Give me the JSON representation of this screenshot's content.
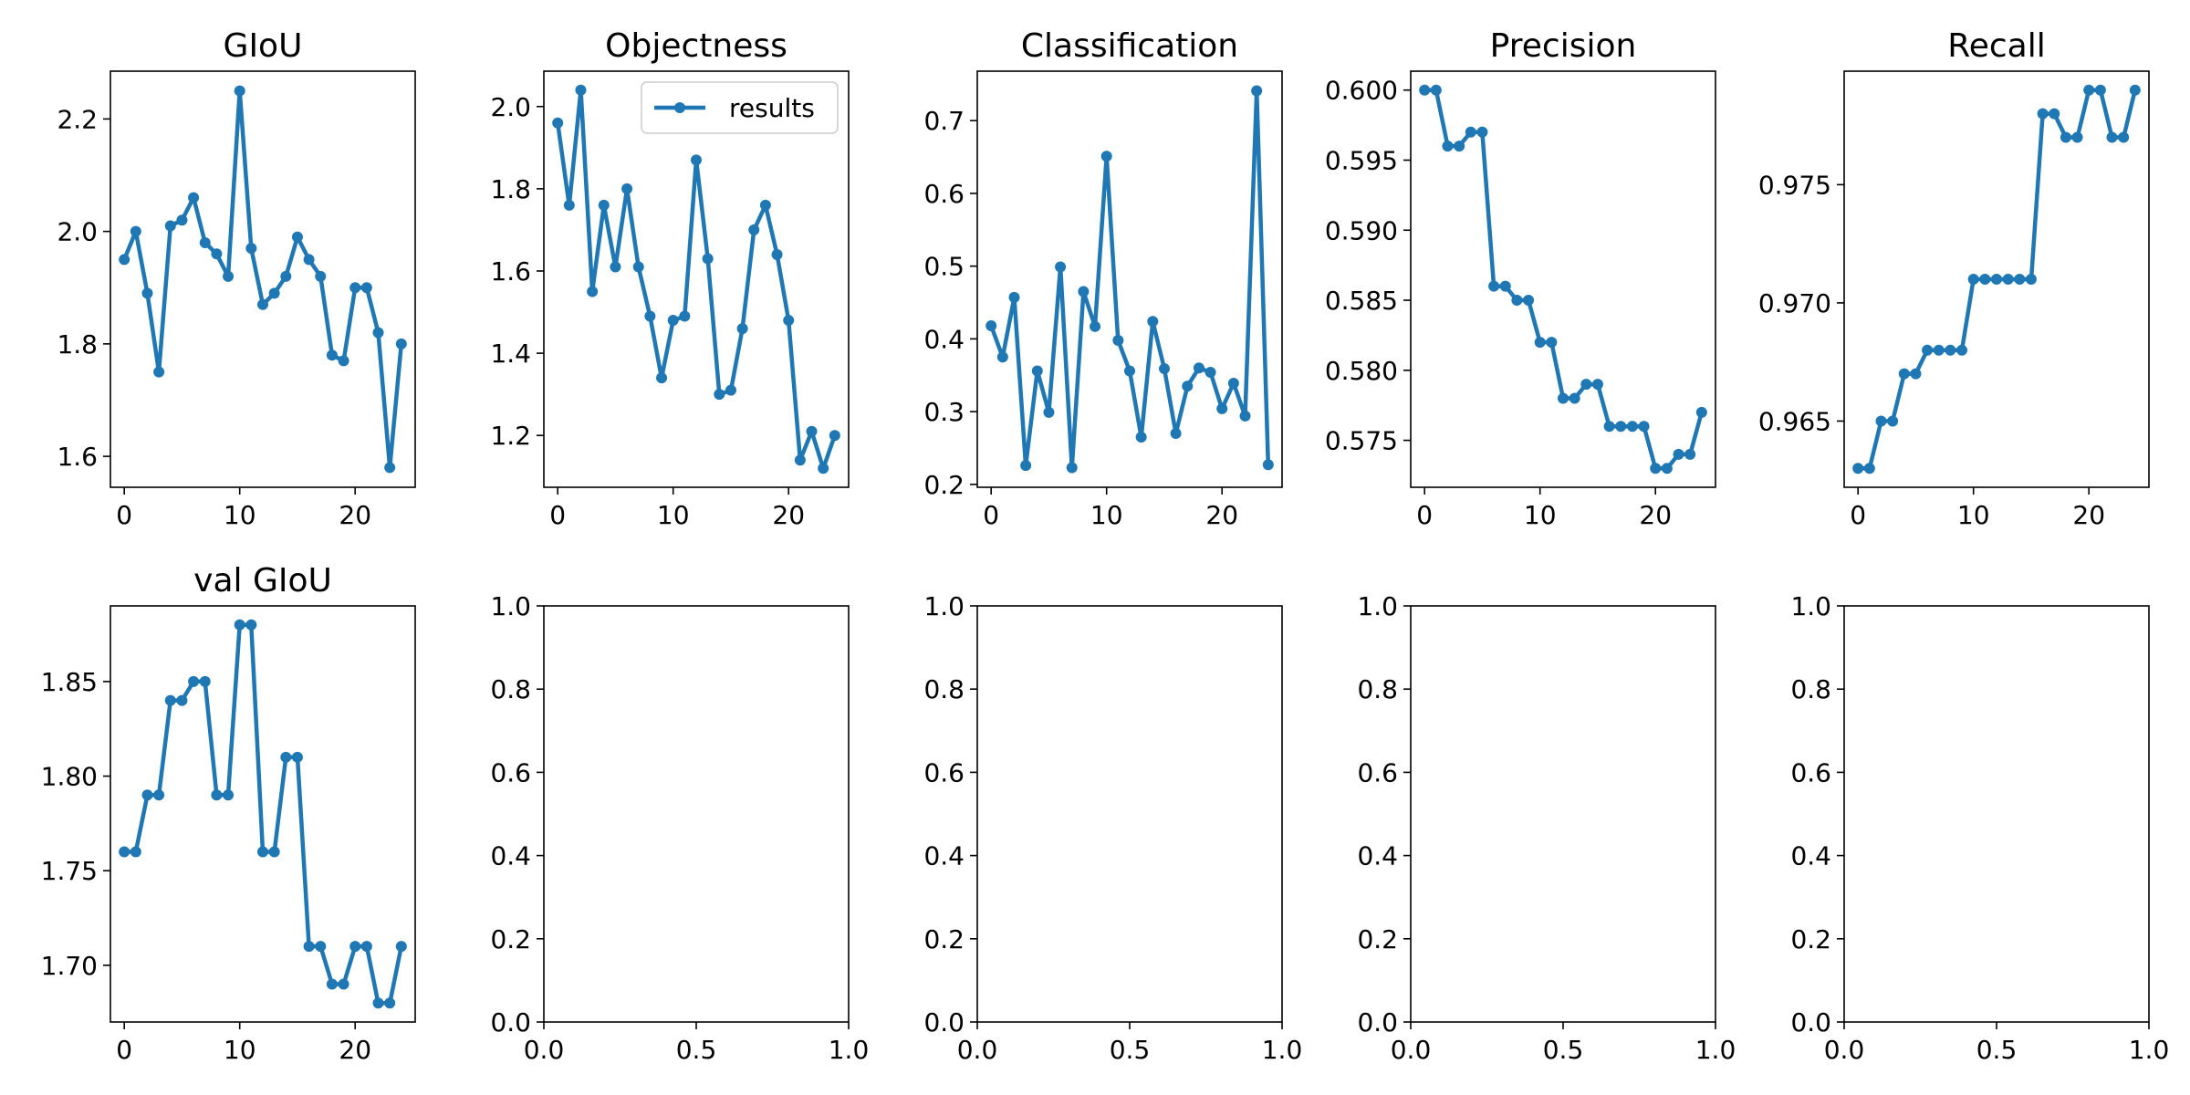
{
  "chart_data": [
    {
      "type": "line",
      "title": "GIoU",
      "x": [
        0,
        1,
        2,
        3,
        4,
        5,
        6,
        7,
        8,
        9,
        10,
        11,
        12,
        13,
        14,
        15,
        16,
        17,
        18,
        19,
        20,
        21,
        22,
        23,
        24
      ],
      "series": [
        {
          "values": [
            1.95,
            2.0,
            1.89,
            1.75,
            2.01,
            2.02,
            2.06,
            1.98,
            1.96,
            1.92,
            2.25,
            1.97,
            1.87,
            1.89,
            1.92,
            1.99,
            1.95,
            1.92,
            1.78,
            1.77,
            1.9,
            1.9,
            1.82,
            1.58,
            1.8
          ]
        }
      ],
      "xlim": [
        -1.2,
        25.2
      ],
      "ylim": [
        1.545,
        2.285
      ],
      "xticks": [
        0,
        10,
        20
      ],
      "xtick_labels": [
        "0",
        "10",
        "20"
      ],
      "yticks": [
        1.6,
        1.8,
        2.0,
        2.2
      ],
      "ytick_labels": [
        "1.6",
        "1.8",
        "2.0",
        "2.2"
      ]
    },
    {
      "type": "line",
      "title": "Objectness",
      "x": [
        0,
        1,
        2,
        3,
        4,
        5,
        6,
        7,
        8,
        9,
        10,
        11,
        12,
        13,
        14,
        15,
        16,
        17,
        18,
        19,
        20,
        21,
        22,
        23,
        24
      ],
      "series": [
        {
          "name": "results",
          "values": [
            1.96,
            1.76,
            2.04,
            1.55,
            1.76,
            1.61,
            1.8,
            1.61,
            1.49,
            1.34,
            1.48,
            1.49,
            1.87,
            1.63,
            1.3,
            1.31,
            1.46,
            1.7,
            1.76,
            1.64,
            1.48,
            1.14,
            1.21,
            1.12,
            1.2
          ]
        }
      ],
      "legend": {
        "placement": "top-right",
        "entries": [
          "results"
        ]
      },
      "xlim": [
        -1.2,
        25.2
      ],
      "ylim": [
        1.074,
        2.086
      ],
      "xticks": [
        0,
        10,
        20
      ],
      "xtick_labels": [
        "0",
        "10",
        "20"
      ],
      "yticks": [
        1.2,
        1.4,
        1.6,
        1.8,
        2.0
      ],
      "ytick_labels": [
        "1.2",
        "1.4",
        "1.6",
        "1.8",
        "2.0"
      ]
    },
    {
      "type": "line",
      "title": "Classification",
      "x": [
        0,
        1,
        2,
        3,
        4,
        5,
        6,
        7,
        8,
        9,
        10,
        11,
        12,
        13,
        14,
        15,
        16,
        17,
        18,
        19,
        20,
        21,
        22,
        23,
        24
      ],
      "series": [
        {
          "values": [
            0.418,
            0.375,
            0.457,
            0.226,
            0.356,
            0.299,
            0.499,
            0.223,
            0.465,
            0.417,
            0.651,
            0.398,
            0.356,
            0.265,
            0.424,
            0.359,
            0.27,
            0.335,
            0.36,
            0.354,
            0.304,
            0.339,
            0.294,
            0.741,
            0.227
          ]
        }
      ],
      "xlim": [
        -1.2,
        25.2
      ],
      "ylim": [
        0.196,
        0.768
      ],
      "xticks": [
        0,
        10,
        20
      ],
      "xtick_labels": [
        "0",
        "10",
        "20"
      ],
      "yticks": [
        0.2,
        0.3,
        0.4,
        0.5,
        0.6,
        0.7
      ],
      "ytick_labels": [
        "0.2",
        "0.3",
        "0.4",
        "0.5",
        "0.6",
        "0.7"
      ]
    },
    {
      "type": "line",
      "title": "Precision",
      "x": [
        0,
        1,
        2,
        3,
        4,
        5,
        6,
        7,
        8,
        9,
        10,
        11,
        12,
        13,
        14,
        15,
        16,
        17,
        18,
        19,
        20,
        21,
        22,
        23,
        24
      ],
      "series": [
        {
          "values": [
            0.6,
            0.6,
            0.596,
            0.596,
            0.597,
            0.597,
            0.586,
            0.586,
            0.585,
            0.585,
            0.582,
            0.582,
            0.578,
            0.578,
            0.579,
            0.579,
            0.576,
            0.576,
            0.576,
            0.576,
            0.573,
            0.573,
            0.574,
            0.574,
            0.577
          ]
        }
      ],
      "xlim": [
        -1.2,
        25.2
      ],
      "ylim": [
        0.57165,
        0.60135
      ],
      "xticks": [
        0,
        10,
        20
      ],
      "xtick_labels": [
        "0",
        "10",
        "20"
      ],
      "yticks": [
        0.575,
        0.58,
        0.585,
        0.59,
        0.595,
        0.6
      ],
      "ytick_labels": [
        "0.575",
        "0.580",
        "0.585",
        "0.590",
        "0.595",
        "0.600"
      ]
    },
    {
      "type": "line",
      "title": "Recall",
      "x": [
        0,
        1,
        2,
        3,
        4,
        5,
        6,
        7,
        8,
        9,
        10,
        11,
        12,
        13,
        14,
        15,
        16,
        17,
        18,
        19,
        20,
        21,
        22,
        23,
        24
      ],
      "series": [
        {
          "values": [
            0.963,
            0.963,
            0.965,
            0.965,
            0.967,
            0.967,
            0.968,
            0.968,
            0.968,
            0.968,
            0.971,
            0.971,
            0.971,
            0.971,
            0.971,
            0.971,
            0.978,
            0.978,
            0.977,
            0.977,
            0.979,
            0.979,
            0.977,
            0.977,
            0.979
          ]
        }
      ],
      "xlim": [
        -1.2,
        25.2
      ],
      "ylim": [
        0.9622,
        0.9798
      ],
      "xticks": [
        0,
        10,
        20
      ],
      "xtick_labels": [
        "0",
        "10",
        "20"
      ],
      "yticks": [
        0.965,
        0.97,
        0.975
      ],
      "ytick_labels": [
        "0.965",
        "0.970",
        "0.975"
      ]
    },
    {
      "type": "line",
      "title": "val GIoU",
      "x": [
        0,
        1,
        2,
        3,
        4,
        5,
        6,
        7,
        8,
        9,
        10,
        11,
        12,
        13,
        14,
        15,
        16,
        17,
        18,
        19,
        20,
        21,
        22,
        23,
        24
      ],
      "series": [
        {
          "values": [
            1.76,
            1.76,
            1.79,
            1.79,
            1.84,
            1.84,
            1.85,
            1.85,
            1.79,
            1.79,
            1.88,
            1.88,
            1.76,
            1.76,
            1.81,
            1.81,
            1.71,
            1.71,
            1.69,
            1.69,
            1.71,
            1.71,
            1.68,
            1.68,
            1.71
          ]
        }
      ],
      "xlim": [
        -1.2,
        25.2
      ],
      "ylim": [
        1.67,
        1.89
      ],
      "xticks": [
        0,
        10,
        20
      ],
      "xtick_labels": [
        "0",
        "10",
        "20"
      ],
      "yticks": [
        1.7,
        1.75,
        1.8,
        1.85
      ],
      "ytick_labels": [
        "1.70",
        "1.75",
        "1.80",
        "1.85"
      ]
    },
    {
      "type": "line",
      "title": "",
      "x": [],
      "series": [],
      "xlim": [
        0,
        1
      ],
      "ylim": [
        0,
        1
      ],
      "xticks": [
        0,
        0.5,
        1
      ],
      "xtick_labels": [
        "0.0",
        "0.5",
        "1.0"
      ],
      "yticks": [
        0,
        0.2,
        0.4,
        0.6,
        0.8,
        1
      ],
      "ytick_labels": [
        "0.0",
        "0.2",
        "0.4",
        "0.6",
        "0.8",
        "1.0"
      ]
    },
    {
      "type": "line",
      "title": "",
      "x": [],
      "series": [],
      "xlim": [
        0,
        1
      ],
      "ylim": [
        0,
        1
      ],
      "xticks": [
        0,
        0.5,
        1
      ],
      "xtick_labels": [
        "0.0",
        "0.5",
        "1.0"
      ],
      "yticks": [
        0,
        0.2,
        0.4,
        0.6,
        0.8,
        1
      ],
      "ytick_labels": [
        "0.0",
        "0.2",
        "0.4",
        "0.6",
        "0.8",
        "1.0"
      ]
    },
    {
      "type": "line",
      "title": "",
      "x": [],
      "series": [],
      "xlim": [
        0,
        1
      ],
      "ylim": [
        0,
        1
      ],
      "xticks": [
        0,
        0.5,
        1
      ],
      "xtick_labels": [
        "0.0",
        "0.5",
        "1.0"
      ],
      "yticks": [
        0,
        0.2,
        0.4,
        0.6,
        0.8,
        1
      ],
      "ytick_labels": [
        "0.0",
        "0.2",
        "0.4",
        "0.6",
        "0.8",
        "1.0"
      ]
    },
    {
      "type": "line",
      "title": "",
      "x": [],
      "series": [],
      "xlim": [
        0,
        1
      ],
      "ylim": [
        0,
        1
      ],
      "xticks": [
        0,
        0.5,
        1
      ],
      "xtick_labels": [
        "0.0",
        "0.5",
        "1.0"
      ],
      "yticks": [
        0,
        0.2,
        0.4,
        0.6,
        0.8,
        1
      ],
      "ytick_labels": [
        "0.0",
        "0.2",
        "0.4",
        "0.6",
        "0.8",
        "1.0"
      ]
    }
  ],
  "colors": {
    "series": "#1f77b4",
    "axes": "#000000",
    "background": "#ffffff",
    "legend_border": "#cccccc"
  }
}
